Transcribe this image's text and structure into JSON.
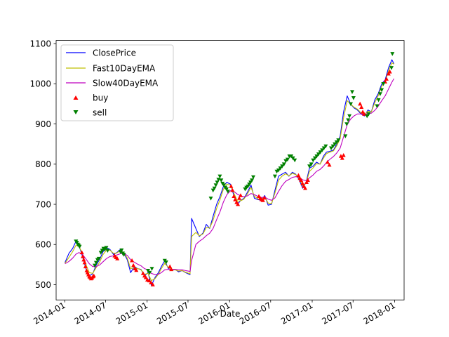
{
  "chart_data": {
    "type": "line",
    "title": "",
    "xlabel": "Date",
    "ylabel": "",
    "xlim": [
      "2013-11-24",
      "2018-02-12"
    ],
    "ylim": [
      462,
      1108
    ],
    "grid": false,
    "legend_position": "top-left",
    "x_ticks": [
      "2014-01",
      "2014-07",
      "2015-01",
      "2015-07",
      "2016-01",
      "2016-07",
      "2017-01",
      "2017-07",
      "2018-01"
    ],
    "x_tick_dates": [
      "2014-01-01",
      "2014-07-01",
      "2015-01-01",
      "2015-07-01",
      "2016-01-01",
      "2016-07-01",
      "2017-01-01",
      "2017-07-01",
      "2018-01-01"
    ],
    "y_ticks": [
      500,
      600,
      700,
      800,
      900,
      1000,
      1100
    ],
    "y_tick_labels": [
      "500",
      "600",
      "700",
      "800",
      "900",
      "1000",
      "1100"
    ],
    "legend": [
      "ClosePrice",
      "Fast10DayEMA",
      "Slow40DayEMA",
      "buy",
      "sell"
    ],
    "colors": {
      "ClosePrice": "#0000ff",
      "Fast10DayEMA": "#bfbf00",
      "Slow40DayEMA": "#bf00bf",
      "buy": "#ff0000",
      "sell": "#008000"
    },
    "series": [
      {
        "name": "ClosePrice",
        "color": "#0000ff",
        "x": [
          "2014-01-02",
          "2014-01-20",
          "2014-02-05",
          "2014-02-20",
          "2014-03-05",
          "2014-03-20",
          "2014-04-05",
          "2014-04-20",
          "2014-05-05",
          "2014-05-20",
          "2014-06-05",
          "2014-06-20",
          "2014-07-05",
          "2014-07-20",
          "2014-08-05",
          "2014-08-20",
          "2014-09-05",
          "2014-09-20",
          "2014-10-05",
          "2014-10-20",
          "2014-11-05",
          "2014-11-20",
          "2014-12-05",
          "2014-12-20",
          "2015-01-05",
          "2015-01-20",
          "2015-02-05",
          "2015-02-20",
          "2015-03-05",
          "2015-03-20",
          "2015-04-05",
          "2015-04-20",
          "2015-05-05",
          "2015-05-20",
          "2015-06-05",
          "2015-06-20",
          "2015-07-10",
          "2015-07-17",
          "2015-08-05",
          "2015-08-20",
          "2015-09-05",
          "2015-09-20",
          "2015-10-05",
          "2015-10-20",
          "2015-11-05",
          "2015-11-20",
          "2015-12-05",
          "2015-12-20",
          "2016-01-05",
          "2016-01-20",
          "2016-02-05",
          "2016-02-20",
          "2016-03-05",
          "2016-03-20",
          "2016-04-05",
          "2016-04-20",
          "2016-05-05",
          "2016-05-20",
          "2016-06-05",
          "2016-06-20",
          "2016-07-05",
          "2016-07-20",
          "2016-08-05",
          "2016-08-20",
          "2016-09-05",
          "2016-09-20",
          "2016-10-05",
          "2016-10-20",
          "2016-11-05",
          "2016-11-20",
          "2016-12-05",
          "2016-12-20",
          "2017-01-05",
          "2017-01-20",
          "2017-02-05",
          "2017-02-20",
          "2017-03-05",
          "2017-03-20",
          "2017-04-05",
          "2017-04-20",
          "2017-05-05",
          "2017-05-20",
          "2017-06-05",
          "2017-06-20",
          "2017-07-05",
          "2017-07-20",
          "2017-08-05",
          "2017-08-20",
          "2017-09-05",
          "2017-09-20",
          "2017-10-05",
          "2017-10-20",
          "2017-11-05",
          "2017-11-20",
          "2017-12-05",
          "2017-12-20",
          "2017-12-29"
        ],
        "values": [
          555,
          578,
          590,
          608,
          598,
          572,
          540,
          522,
          527,
          548,
          563,
          582,
          592,
          588,
          575,
          580,
          588,
          578,
          562,
          530,
          545,
          540,
          538,
          522,
          530,
          498,
          518,
          530,
          545,
          560,
          540,
          535,
          538,
          532,
          535,
          530,
          525,
          665,
          640,
          620,
          628,
          650,
          640,
          670,
          700,
          720,
          745,
          755,
          750,
          722,
          700,
          710,
          715,
          730,
          748,
          715,
          712,
          710,
          722,
          698,
          700,
          735,
          770,
          775,
          780,
          770,
          780,
          775,
          760,
          740,
          755,
          790,
          795,
          805,
          800,
          820,
          830,
          832,
          835,
          850,
          870,
          930,
          970,
          950,
          940,
          935,
          925,
          920,
          935,
          930,
          960,
          975,
          1000,
          1010,
          1040,
          1060,
          1050
        ]
      },
      {
        "name": "Fast10DayEMA",
        "color": "#bfbf00",
        "x": [
          "2014-01-02",
          "2014-01-20",
          "2014-02-05",
          "2014-02-20",
          "2014-03-05",
          "2014-03-20",
          "2014-04-05",
          "2014-04-20",
          "2014-05-05",
          "2014-05-20",
          "2014-06-05",
          "2014-06-20",
          "2014-07-05",
          "2014-07-20",
          "2014-08-05",
          "2014-08-20",
          "2014-09-05",
          "2014-09-20",
          "2014-10-05",
          "2014-10-20",
          "2014-11-05",
          "2014-11-20",
          "2014-12-05",
          "2014-12-20",
          "2015-01-05",
          "2015-01-20",
          "2015-02-05",
          "2015-02-20",
          "2015-03-05",
          "2015-03-20",
          "2015-04-05",
          "2015-04-20",
          "2015-05-05",
          "2015-05-20",
          "2015-06-05",
          "2015-06-20",
          "2015-07-10",
          "2015-07-17",
          "2015-08-05",
          "2015-08-20",
          "2015-09-05",
          "2015-09-20",
          "2015-10-05",
          "2015-10-20",
          "2015-11-05",
          "2015-11-20",
          "2015-12-05",
          "2015-12-20",
          "2016-01-05",
          "2016-01-20",
          "2016-02-05",
          "2016-02-20",
          "2016-03-05",
          "2016-03-20",
          "2016-04-05",
          "2016-04-20",
          "2016-05-05",
          "2016-05-20",
          "2016-06-05",
          "2016-06-20",
          "2016-07-05",
          "2016-07-20",
          "2016-08-05",
          "2016-08-20",
          "2016-09-05",
          "2016-09-20",
          "2016-10-05",
          "2016-10-20",
          "2016-11-05",
          "2016-11-20",
          "2016-12-05",
          "2016-12-20",
          "2017-01-05",
          "2017-01-20",
          "2017-02-05",
          "2017-02-20",
          "2017-03-05",
          "2017-03-20",
          "2017-04-05",
          "2017-04-20",
          "2017-05-05",
          "2017-05-20",
          "2017-06-05",
          "2017-06-20",
          "2017-07-05",
          "2017-07-20",
          "2017-08-05",
          "2017-08-20",
          "2017-09-05",
          "2017-09-20",
          "2017-10-05",
          "2017-10-20",
          "2017-11-05",
          "2017-11-20",
          "2017-12-05",
          "2017-12-20",
          "2017-12-29"
        ],
        "values": [
          553,
          568,
          582,
          598,
          596,
          578,
          550,
          530,
          528,
          542,
          556,
          575,
          586,
          586,
          578,
          579,
          585,
          580,
          566,
          540,
          542,
          540,
          537,
          526,
          528,
          510,
          515,
          526,
          540,
          553,
          543,
          537,
          537,
          534,
          535,
          531,
          527,
          620,
          630,
          622,
          626,
          642,
          641,
          660,
          690,
          712,
          738,
          750,
          748,
          728,
          708,
          709,
          713,
          726,
          742,
          720,
          714,
          711,
          719,
          703,
          702,
          728,
          760,
          770,
          776,
          771,
          777,
          774,
          763,
          746,
          753,
          782,
          791,
          801,
          800,
          815,
          826,
          830,
          833,
          846,
          864,
          915,
          958,
          950,
          942,
          937,
          928,
          922,
          932,
          930,
          953,
          970,
          994,
          1006,
          1032,
          1052,
          1049
        ]
      },
      {
        "name": "Slow40DayEMA",
        "color": "#bf00bf",
        "x": [
          "2014-01-02",
          "2014-01-20",
          "2014-02-05",
          "2014-02-20",
          "2014-03-05",
          "2014-03-20",
          "2014-04-05",
          "2014-04-20",
          "2014-05-05",
          "2014-05-20",
          "2014-06-05",
          "2014-06-20",
          "2014-07-05",
          "2014-07-20",
          "2014-08-05",
          "2014-08-20",
          "2014-09-05",
          "2014-09-20",
          "2014-10-05",
          "2014-10-20",
          "2014-11-05",
          "2014-11-20",
          "2014-12-05",
          "2014-12-20",
          "2015-01-05",
          "2015-01-20",
          "2015-02-05",
          "2015-02-20",
          "2015-03-05",
          "2015-03-20",
          "2015-04-05",
          "2015-04-20",
          "2015-05-05",
          "2015-05-20",
          "2015-06-05",
          "2015-06-20",
          "2015-07-10",
          "2015-07-17",
          "2015-08-05",
          "2015-08-20",
          "2015-09-05",
          "2015-09-20",
          "2015-10-05",
          "2015-10-20",
          "2015-11-05",
          "2015-11-20",
          "2015-12-05",
          "2015-12-20",
          "2016-01-05",
          "2016-01-20",
          "2016-02-05",
          "2016-02-20",
          "2016-03-05",
          "2016-03-20",
          "2016-04-05",
          "2016-04-20",
          "2016-05-05",
          "2016-05-20",
          "2016-06-05",
          "2016-06-20",
          "2016-07-05",
          "2016-07-20",
          "2016-08-05",
          "2016-08-20",
          "2016-09-05",
          "2016-09-20",
          "2016-10-05",
          "2016-10-20",
          "2016-11-05",
          "2016-11-20",
          "2016-12-05",
          "2016-12-20",
          "2017-01-05",
          "2017-01-20",
          "2017-02-05",
          "2017-02-20",
          "2017-03-05",
          "2017-03-20",
          "2017-04-05",
          "2017-04-20",
          "2017-05-05",
          "2017-05-20",
          "2017-06-05",
          "2017-06-20",
          "2017-07-05",
          "2017-07-20",
          "2017-08-05",
          "2017-08-20",
          "2017-09-05",
          "2017-09-20",
          "2017-10-05",
          "2017-10-20",
          "2017-11-05",
          "2017-11-20",
          "2017-12-05",
          "2017-12-20",
          "2017-12-29"
        ],
        "values": [
          552,
          558,
          566,
          576,
          580,
          576,
          564,
          552,
          545,
          545,
          549,
          557,
          565,
          570,
          572,
          574,
          577,
          577,
          573,
          562,
          556,
          551,
          547,
          540,
          537,
          528,
          525,
          526,
          530,
          537,
          538,
          538,
          538,
          537,
          537,
          535,
          533,
          560,
          600,
          608,
          614,
          622,
          628,
          640,
          662,
          682,
          706,
          724,
          734,
          732,
          725,
          721,
          719,
          721,
          727,
          724,
          720,
          717,
          718,
          713,
          710,
          716,
          732,
          746,
          757,
          762,
          767,
          769,
          767,
          761,
          759,
          766,
          773,
          782,
          787,
          795,
          804,
          812,
          819,
          828,
          840,
          868,
          898,
          912,
          920,
          925,
          925,
          924,
          926,
          927,
          934,
          944,
          958,
          970,
          987,
          1004,
          1013
        ]
      }
    ],
    "buy_points": {
      "name": "buy",
      "color": "#ff0000",
      "x": [
        "2014-03-18",
        "2014-03-22",
        "2014-03-26",
        "2014-03-30",
        "2014-04-03",
        "2014-04-08",
        "2014-04-12",
        "2014-04-16",
        "2014-04-20",
        "2014-04-24",
        "2014-04-28",
        "2014-05-02",
        "2014-05-06",
        "2014-05-10",
        "2014-08-10",
        "2014-08-16",
        "2014-08-22",
        "2014-10-26",
        "2014-11-01",
        "2014-11-08",
        "2014-11-14",
        "2014-12-14",
        "2014-12-20",
        "2014-12-26",
        "2015-01-02",
        "2015-01-10",
        "2015-01-18",
        "2015-01-26",
        "2015-04-12",
        "2015-04-18",
        "2016-01-08",
        "2016-01-14",
        "2016-01-20",
        "2016-01-26",
        "2016-02-01",
        "2016-02-07",
        "2016-02-13",
        "2016-02-19",
        "2016-05-10",
        "2016-05-16",
        "2016-05-22",
        "2016-05-28",
        "2016-06-03",
        "2016-11-01",
        "2016-11-07",
        "2016-11-13",
        "2016-11-19",
        "2016-11-25",
        "2016-12-01",
        "2016-12-07",
        "2016-12-13",
        "2017-03-10",
        "2017-03-18",
        "2017-05-08",
        "2017-05-14",
        "2017-05-20",
        "2017-08-01",
        "2017-08-07",
        "2017-08-13",
        "2017-08-19",
        "2017-11-20",
        "2017-11-26",
        "2017-12-05",
        "2017-12-11"
      ],
      "values": [
        580,
        570,
        562,
        555,
        545,
        535,
        530,
        525,
        520,
        518,
        515,
        517,
        520,
        522,
        572,
        568,
        565,
        560,
        548,
        540,
        536,
        528,
        522,
        518,
        512,
        510,
        505,
        500,
        545,
        538,
        745,
        735,
        720,
        712,
        705,
        700,
        715,
        722,
        720,
        715,
        712,
        710,
        716,
        772,
        765,
        760,
        752,
        745,
        740,
        755,
        760,
        805,
        798,
        820,
        815,
        822,
        950,
        942,
        930,
        925,
        1005,
        1012,
        1025,
        1030
      ]
    },
    "sell_points": {
      "name": "sell",
      "color": "#008000",
      "x": [
        "2014-02-20",
        "2014-02-24",
        "2014-02-28",
        "2014-03-04",
        "2014-03-08",
        "2014-05-14",
        "2014-05-20",
        "2014-05-26",
        "2014-06-01",
        "2014-06-10",
        "2014-06-16",
        "2014-06-22",
        "2014-06-28",
        "2014-07-04",
        "2014-07-10",
        "2014-09-05",
        "2014-09-10",
        "2014-09-15",
        "2014-09-20",
        "2015-01-05",
        "2015-01-12",
        "2015-01-22",
        "2015-03-20",
        "2015-03-26",
        "2015-10-10",
        "2015-10-20",
        "2015-10-26",
        "2015-11-01",
        "2015-11-07",
        "2015-11-13",
        "2015-11-19",
        "2015-11-25",
        "2015-12-01",
        "2015-12-07",
        "2015-12-13",
        "2015-12-19",
        "2015-12-25",
        "2016-03-10",
        "2016-03-16",
        "2016-03-22",
        "2016-03-28",
        "2016-04-03",
        "2016-04-09",
        "2016-04-15",
        "2016-07-20",
        "2016-07-28",
        "2016-08-05",
        "2016-08-13",
        "2016-08-21",
        "2016-08-29",
        "2016-09-06",
        "2016-09-14",
        "2016-09-22",
        "2016-09-30",
        "2016-10-08",
        "2016-10-16",
        "2016-12-20",
        "2016-12-28",
        "2017-01-05",
        "2017-01-13",
        "2017-01-21",
        "2017-01-29",
        "2017-02-06",
        "2017-02-14",
        "2017-02-22",
        "2017-03-02",
        "2017-03-26",
        "2017-04-03",
        "2017-04-11",
        "2017-04-19",
        "2017-04-27",
        "2017-05-28",
        "2017-06-03",
        "2017-06-09",
        "2017-06-15",
        "2017-06-21",
        "2017-06-27",
        "2017-07-03",
        "2017-09-01",
        "2017-09-08",
        "2017-10-15",
        "2017-10-22",
        "2017-10-29",
        "2017-11-05",
        "2017-11-12",
        "2017-12-18",
        "2017-12-22"
      ],
      "values": [
        608,
        605,
        600,
        598,
        595,
        548,
        555,
        562,
        565,
        580,
        585,
        590,
        588,
        592,
        585,
        582,
        586,
        578,
        575,
        535,
        530,
        540,
        560,
        556,
        715,
        735,
        740,
        748,
        755,
        762,
        770,
        760,
        752,
        748,
        742,
        738,
        732,
        738,
        742,
        745,
        750,
        755,
        760,
        768,
        770,
        782,
        785,
        790,
        795,
        800,
        808,
        812,
        820,
        820,
        815,
        810,
        795,
        800,
        810,
        815,
        820,
        825,
        830,
        835,
        840,
        845,
        840,
        845,
        850,
        855,
        860,
        870,
        900,
        910,
        920,
        950,
        980,
        965,
        920,
        925,
        945,
        960,
        975,
        985,
        1000,
        1040,
        1075
      ]
    }
  }
}
